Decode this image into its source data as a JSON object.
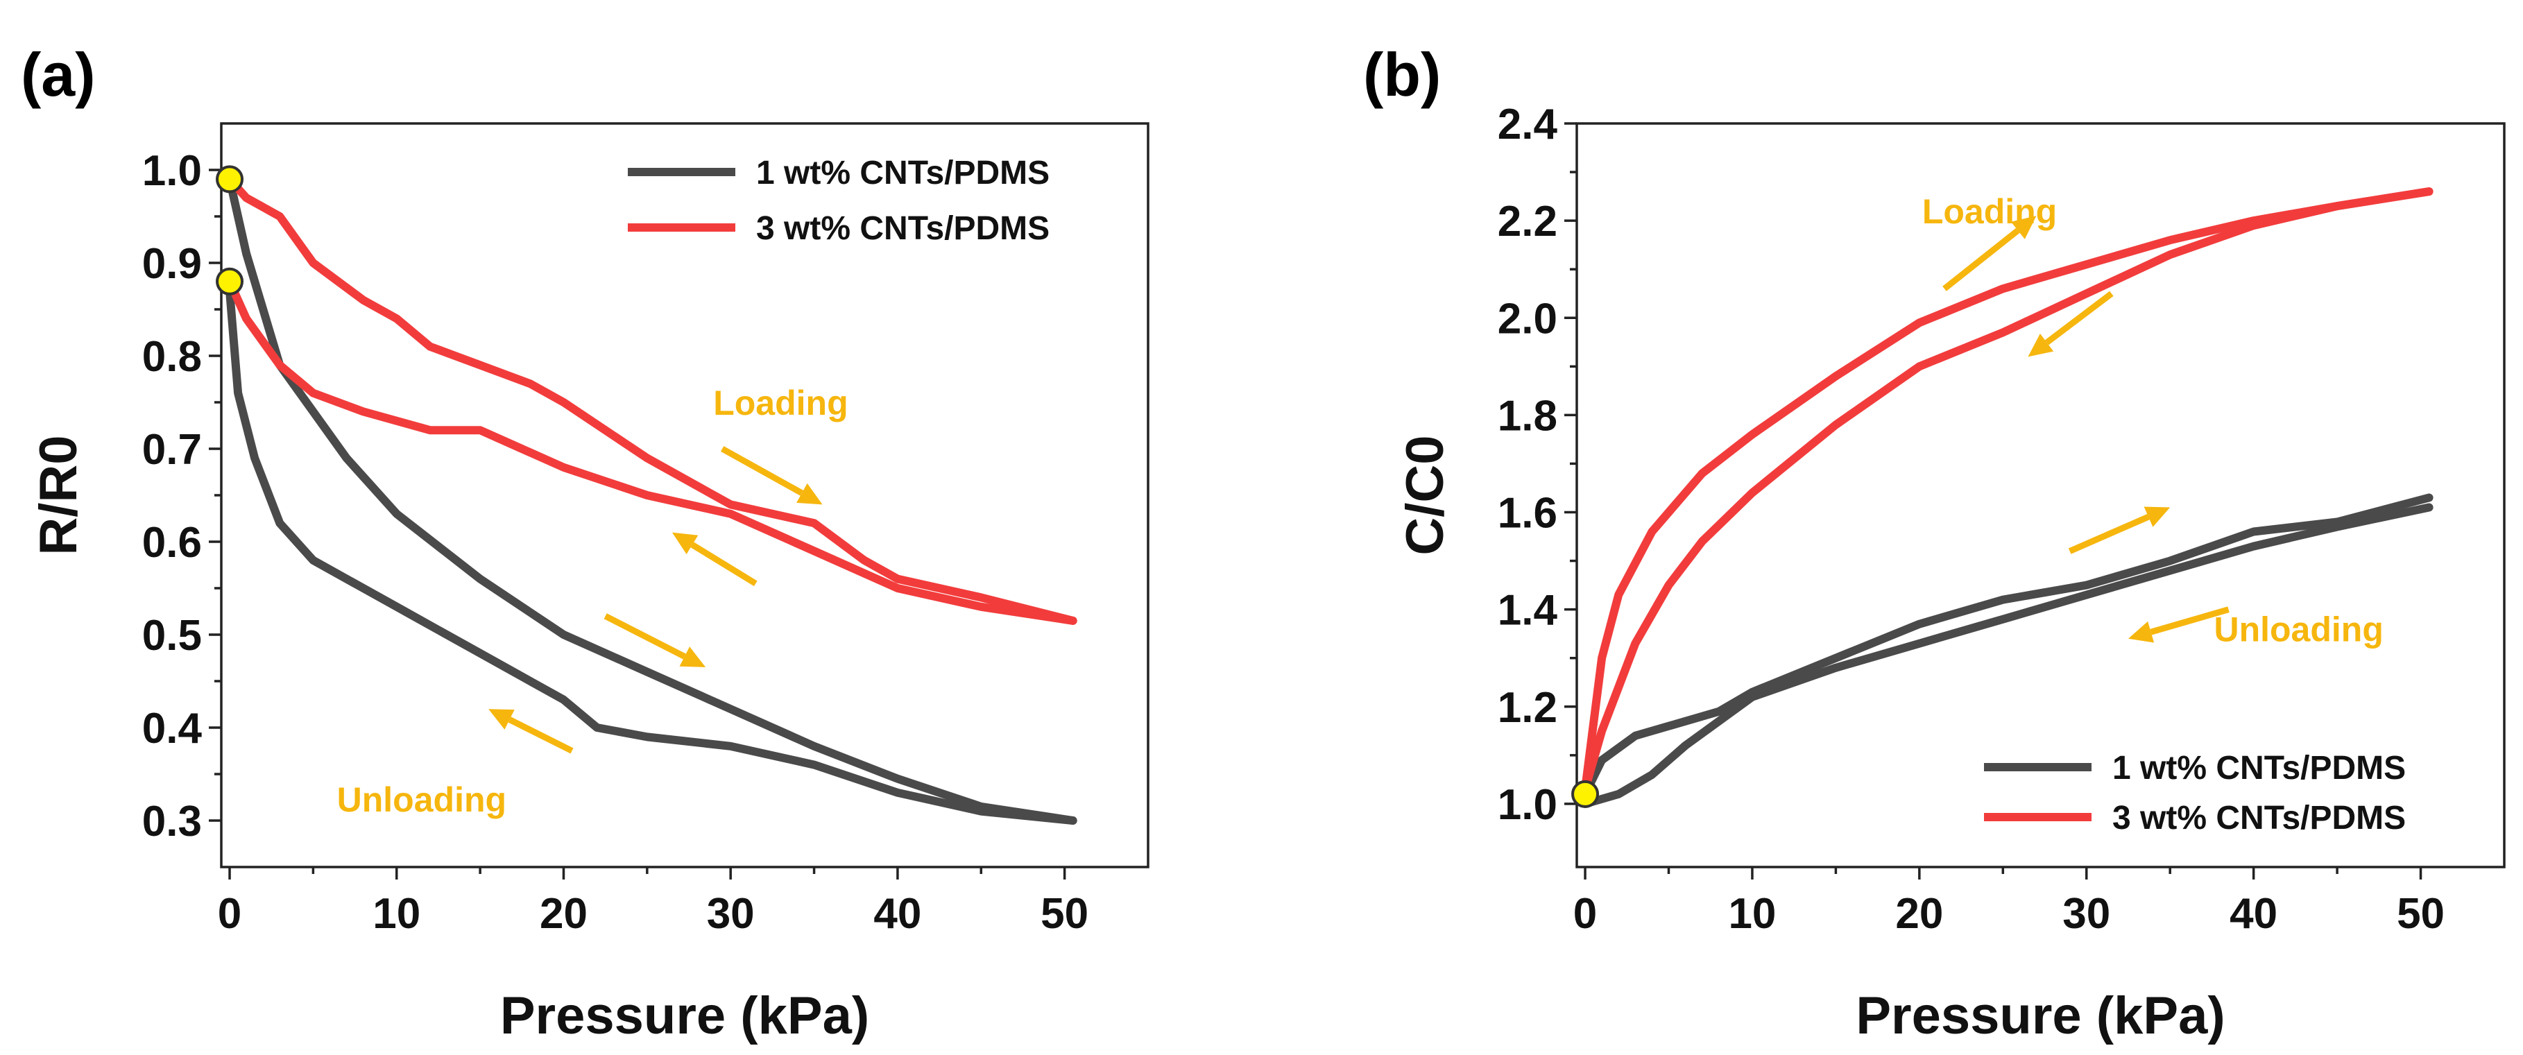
{
  "colors": {
    "black_series": "#4a4a4a",
    "red_series": "#f23c3c",
    "annotation": "#f6b60e",
    "marker_fill": "#fff200",
    "axis": "#222222"
  },
  "chart_data": [
    {
      "panel_label": "(a)",
      "type": "line",
      "xlabel": "Pressure (kPa)",
      "ylabel": "R/R0",
      "xlim": [
        -0.5,
        55
      ],
      "ylim": [
        0.25,
        1.05
      ],
      "x_ticks": [
        0,
        10,
        20,
        30,
        40,
        50
      ],
      "y_ticks": [
        0.3,
        0.4,
        0.5,
        0.6,
        0.7,
        0.8,
        0.9,
        1.0
      ],
      "x_tick_labels": [
        "0",
        "10",
        "20",
        "30",
        "40",
        "50"
      ],
      "y_tick_labels": [
        "0.3",
        "0.4",
        "0.5",
        "0.6",
        "0.7",
        "0.8",
        "0.9",
        "1.0"
      ],
      "legend": {
        "position": "top-right",
        "entries": [
          "1 wt% CNTs/PDMS",
          "3 wt% CNTs/PDMS"
        ]
      },
      "series": [
        {
          "name": "1 wt% CNTs/PDMS",
          "color_key": "black_series",
          "loading": {
            "x": [
              0,
              1,
              2,
              3,
              5,
              7,
              10,
              15,
              20,
              25,
              30,
              35,
              40,
              45,
              50.5
            ],
            "y": [
              0.99,
              0.91,
              0.85,
              0.79,
              0.74,
              0.69,
              0.63,
              0.56,
              0.5,
              0.46,
              0.42,
              0.38,
              0.345,
              0.315,
              0.3
            ]
          },
          "unloading": {
            "x": [
              50.5,
              45,
              40,
              35,
              30,
              25,
              22,
              20,
              15,
              10,
              5,
              3,
              1.5,
              0.5,
              0
            ],
            "y": [
              0.3,
              0.31,
              0.33,
              0.36,
              0.38,
              0.39,
              0.4,
              0.43,
              0.48,
              0.53,
              0.58,
              0.62,
              0.69,
              0.76,
              0.87
            ]
          }
        },
        {
          "name": "3 wt% CNTs/PDMS",
          "color_key": "red_series",
          "loading": {
            "x": [
              0,
              1,
              3,
              5,
              8,
              10,
              12,
              15,
              18,
              20,
              25,
              30,
              35,
              38,
              40,
              45,
              50.5
            ],
            "y": [
              0.99,
              0.97,
              0.95,
              0.9,
              0.86,
              0.84,
              0.81,
              0.79,
              0.77,
              0.75,
              0.69,
              0.64,
              0.62,
              0.58,
              0.56,
              0.54,
              0.515
            ]
          },
          "unloading": {
            "x": [
              50.5,
              45,
              40,
              35,
              30,
              25,
              20,
              15,
              12,
              8,
              5,
              3,
              1,
              0
            ],
            "y": [
              0.515,
              0.53,
              0.55,
              0.59,
              0.63,
              0.65,
              0.68,
              0.72,
              0.72,
              0.74,
              0.76,
              0.79,
              0.84,
              0.88
            ]
          }
        }
      ],
      "markers": [
        {
          "x": 0,
          "y": 0.99
        },
        {
          "x": 0,
          "y": 0.88
        }
      ],
      "annotations": [
        {
          "text": "Loading",
          "x": 33,
          "y": 0.75
        },
        {
          "text": "Unloading",
          "x": 11.5,
          "y": 0.323
        }
      ],
      "arrows": [
        {
          "from": [
            29.5,
            0.7
          ],
          "to": [
            35.5,
            0.64
          ]
        },
        {
          "from": [
            31.5,
            0.555
          ],
          "to": [
            26.5,
            0.61
          ]
        },
        {
          "from": [
            22.5,
            0.52
          ],
          "to": [
            28.5,
            0.465
          ]
        },
        {
          "from": [
            20.5,
            0.375
          ],
          "to": [
            15.5,
            0.42
          ]
        }
      ]
    },
    {
      "panel_label": "(b)",
      "type": "line",
      "xlabel": "Pressure (kPa)",
      "ylabel": "C/C0",
      "xlim": [
        -0.5,
        55
      ],
      "ylim": [
        0.87,
        2.4
      ],
      "x_ticks": [
        0,
        10,
        20,
        30,
        40,
        50
      ],
      "y_ticks": [
        1.0,
        1.2,
        1.4,
        1.6,
        1.8,
        2.0,
        2.2,
        2.4
      ],
      "x_tick_labels": [
        "0",
        "10",
        "20",
        "30",
        "40",
        "50"
      ],
      "y_tick_labels": [
        "1.0",
        "1.2",
        "1.4",
        "1.6",
        "1.8",
        "2.0",
        "2.2",
        "2.4"
      ],
      "legend": {
        "position": "bottom-right",
        "entries": [
          "1 wt% CNTs/PDMS",
          "3 wt% CNTs/PDMS"
        ]
      },
      "series": [
        {
          "name": "1 wt% CNTs/PDMS",
          "color_key": "black_series",
          "loading": {
            "x": [
              0,
              2,
              4,
              6,
              8,
              10,
              15,
              20,
              25,
              30,
              35,
              40,
              45,
              50.5
            ],
            "y": [
              1.0,
              1.02,
              1.06,
              1.12,
              1.17,
              1.22,
              1.28,
              1.33,
              1.38,
              1.43,
              1.48,
              1.53,
              1.57,
              1.61
            ]
          },
          "unloading": {
            "x": [
              50.5,
              45,
              40,
              35,
              30,
              25,
              20,
              15,
              10,
              8,
              5,
              3,
              1,
              0
            ],
            "y": [
              1.63,
              1.58,
              1.56,
              1.5,
              1.45,
              1.42,
              1.37,
              1.3,
              1.23,
              1.19,
              1.16,
              1.14,
              1.09,
              1.02
            ]
          }
        },
        {
          "name": "3 wt% CNTs/PDMS",
          "color_key": "red_series",
          "loading": {
            "x": [
              0,
              1,
              2,
              3,
              5,
              7,
              10,
              15,
              20,
              25,
              30,
              35,
              40,
              45,
              50.5
            ],
            "y": [
              1.03,
              1.15,
              1.24,
              1.33,
              1.45,
              1.54,
              1.64,
              1.78,
              1.9,
              1.97,
              2.05,
              2.13,
              2.19,
              2.23,
              2.26
            ]
          },
          "unloading": {
            "x": [
              50.5,
              45,
              40,
              35,
              30,
              25,
              20,
              15,
              10,
              7,
              4,
              2,
              1,
              0
            ],
            "y": [
              2.26,
              2.23,
              2.2,
              2.16,
              2.11,
              2.06,
              1.99,
              1.88,
              1.76,
              1.68,
              1.56,
              1.43,
              1.3,
              1.03
            ]
          }
        }
      ],
      "markers": [
        {
          "x": 0,
          "y": 1.02
        }
      ],
      "annotations": [
        {
          "text": "Loading",
          "x": 24.2,
          "y": 2.22
        },
        {
          "text": "Unloading",
          "x": 42.7,
          "y": 1.36
        }
      ],
      "arrows": [
        {
          "from": [
            21.5,
            2.06
          ],
          "to": [
            27,
            2.21
          ]
        },
        {
          "from": [
            31.5,
            2.05
          ],
          "to": [
            26.5,
            1.92
          ]
        },
        {
          "from": [
            29,
            1.52
          ],
          "to": [
            35,
            1.61
          ]
        },
        {
          "from": [
            38.5,
            1.4
          ],
          "to": [
            32.5,
            1.34
          ]
        }
      ]
    }
  ]
}
